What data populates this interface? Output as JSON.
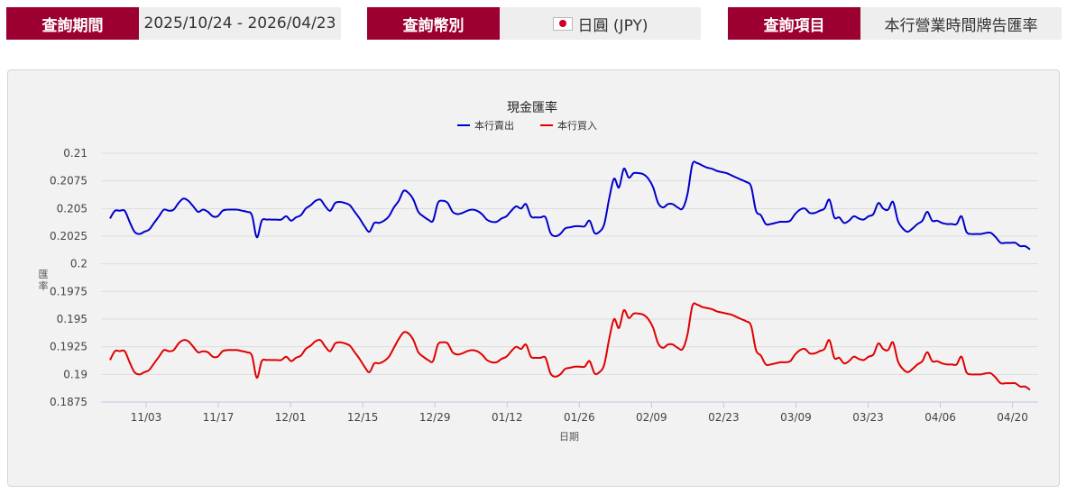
{
  "query": {
    "period": {
      "label": "查詢期間",
      "value": "2025/10/24 - 2026/04/23"
    },
    "currency": {
      "label": "查詢幣別",
      "value": "日圓 (JPY)",
      "flag_icon": "japan-flag-icon"
    },
    "item": {
      "label": "查詢項目",
      "value": "本行營業時間牌告匯率"
    }
  },
  "colors": {
    "accent": "#9b0031",
    "sell": "#0000cc",
    "buy": "#e00000"
  },
  "chart_data": {
    "type": "line",
    "title": "現金匯率",
    "xlabel": "日期",
    "ylabel": "匯率",
    "ylim": [
      0.1875,
      0.21
    ],
    "yticks": [
      "0.21",
      "0.2075",
      "0.205",
      "0.2025",
      "0.2",
      "0.1975",
      "0.195",
      "0.1925",
      "0.19",
      "0.1875"
    ],
    "xticks": [
      "11/03",
      "11/17",
      "12/01",
      "12/15",
      "12/29",
      "01/12",
      "01/26",
      "02/09",
      "02/23",
      "03/09",
      "03/23",
      "04/06",
      "04/20"
    ],
    "grid": true,
    "legend_position": "top",
    "series": [
      {
        "name": "本行賣出",
        "color": "#0000cc",
        "values": [
          0.2041,
          0.2048,
          0.2048,
          0.2048,
          0.2038,
          0.2029,
          0.2027,
          0.2029,
          0.2031,
          0.2037,
          0.2043,
          0.2049,
          0.2048,
          0.2049,
          0.2055,
          0.2059,
          0.2057,
          0.2052,
          0.2047,
          0.2049,
          0.2047,
          0.2043,
          0.2043,
          0.2048,
          0.2049,
          0.2049,
          0.2049,
          0.2048,
          0.2047,
          0.2044,
          0.2024,
          0.2039,
          0.204,
          0.204,
          0.204,
          0.204,
          0.2043,
          0.2039,
          0.2042,
          0.2044,
          0.205,
          0.2053,
          0.2057,
          0.2058,
          0.2052,
          0.2048,
          0.2055,
          0.2056,
          0.2055,
          0.2053,
          0.2047,
          0.2041,
          0.2034,
          0.2029,
          0.2037,
          0.2037,
          0.2039,
          0.2043,
          0.2051,
          0.2057,
          0.2066,
          0.2064,
          0.2058,
          0.2047,
          0.2043,
          0.204,
          0.2039,
          0.2055,
          0.2057,
          0.2055,
          0.2047,
          0.2045,
          0.2046,
          0.2048,
          0.2049,
          0.2048,
          0.2045,
          0.204,
          0.2038,
          0.2038,
          0.2041,
          0.2043,
          0.2048,
          0.2052,
          0.205,
          0.2054,
          0.2043,
          0.2042,
          0.2042,
          0.2042,
          0.2028,
          0.2025,
          0.2027,
          0.2032,
          0.2033,
          0.2034,
          0.2034,
          0.2034,
          0.2039,
          0.2028,
          0.2029,
          0.2036,
          0.2059,
          0.2077,
          0.2069,
          0.2086,
          0.2078,
          0.2082,
          0.2082,
          0.2081,
          0.2077,
          0.2069,
          0.2055,
          0.2051,
          0.2054,
          0.2054,
          0.2051,
          0.205,
          0.2063,
          0.209,
          0.2091,
          0.2089,
          0.2087,
          0.2086,
          0.2084,
          0.2083,
          0.2082,
          0.208,
          0.2078,
          0.2076,
          0.2074,
          0.207,
          0.2048,
          0.2044,
          0.2036,
          0.2036,
          0.2037,
          0.2038,
          0.2038,
          0.2039,
          0.2045,
          0.2049,
          0.205,
          0.2046,
          0.2046,
          0.2048,
          0.205,
          0.2058,
          0.2042,
          0.2042,
          0.2037,
          0.2039,
          0.2043,
          0.2041,
          0.204,
          0.2043,
          0.2045,
          0.2055,
          0.205,
          0.2049,
          0.2056,
          0.2039,
          0.2032,
          0.2029,
          0.2032,
          0.2036,
          0.2039,
          0.2047,
          0.2039,
          0.2039,
          0.2037,
          0.2036,
          0.2036,
          0.2036,
          0.2043,
          0.2029,
          0.2027,
          0.2027,
          0.2027,
          0.2028,
          0.2028,
          0.2024,
          0.2019,
          0.2019,
          0.2019,
          0.2019,
          0.2016,
          0.2016,
          0.2013
        ]
      },
      {
        "name": "本行買入",
        "color": "#e00000",
        "values": [
          0.1913,
          0.1921,
          0.1921,
          0.1921,
          0.1911,
          0.1902,
          0.19,
          0.1902,
          0.1904,
          0.191,
          0.1916,
          0.1922,
          0.1921,
          0.1922,
          0.1928,
          0.1931,
          0.193,
          0.1925,
          0.192,
          0.1921,
          0.192,
          0.1916,
          0.1916,
          0.1921,
          0.1922,
          0.1922,
          0.1922,
          0.1921,
          0.192,
          0.1917,
          0.1897,
          0.1912,
          0.1913,
          0.1913,
          0.1913,
          0.1913,
          0.1916,
          0.1912,
          0.1915,
          0.1917,
          0.1923,
          0.1926,
          0.193,
          0.1931,
          0.1925,
          0.1921,
          0.1928,
          0.1929,
          0.1928,
          0.1926,
          0.192,
          0.1914,
          0.1907,
          0.1902,
          0.191,
          0.191,
          0.1912,
          0.1916,
          0.1924,
          0.1932,
          0.1938,
          0.1937,
          0.1931,
          0.192,
          0.1916,
          0.1913,
          0.1912,
          0.1927,
          0.1929,
          0.1928,
          0.192,
          0.1918,
          0.1919,
          0.1921,
          0.1922,
          0.1921,
          0.1918,
          0.1913,
          0.1911,
          0.1911,
          0.1914,
          0.1916,
          0.1921,
          0.1925,
          0.1923,
          0.1927,
          0.1916,
          0.1915,
          0.1915,
          0.1915,
          0.1901,
          0.1898,
          0.19,
          0.1905,
          0.1906,
          0.1907,
          0.1907,
          0.1907,
          0.1912,
          0.1901,
          0.1902,
          0.1909,
          0.1932,
          0.195,
          0.1942,
          0.1958,
          0.1951,
          0.1955,
          0.1955,
          0.1954,
          0.195,
          0.1942,
          0.1928,
          0.1924,
          0.1927,
          0.1927,
          0.1924,
          0.1923,
          0.1936,
          0.1962,
          0.1963,
          0.1961,
          0.196,
          0.1959,
          0.1957,
          0.1956,
          0.1955,
          0.1954,
          0.1952,
          0.195,
          0.1948,
          0.1944,
          0.1922,
          0.1917,
          0.1909,
          0.1909,
          0.191,
          0.1911,
          0.1911,
          0.1912,
          0.1918,
          0.1922,
          0.1923,
          0.1919,
          0.1919,
          0.1921,
          0.1923,
          0.1931,
          0.1915,
          0.1915,
          0.191,
          0.1912,
          0.1916,
          0.1914,
          0.1913,
          0.1916,
          0.1918,
          0.1928,
          0.1923,
          0.1922,
          0.1929,
          0.1912,
          0.1905,
          0.1902,
          0.1905,
          0.1909,
          0.1912,
          0.192,
          0.1912,
          0.1912,
          0.191,
          0.1909,
          0.1909,
          0.1909,
          0.1916,
          0.1902,
          0.19,
          0.19,
          0.19,
          0.1901,
          0.1901,
          0.1897,
          0.1892,
          0.1892,
          0.1892,
          0.1892,
          0.1889,
          0.1889,
          0.1886
        ]
      }
    ]
  }
}
